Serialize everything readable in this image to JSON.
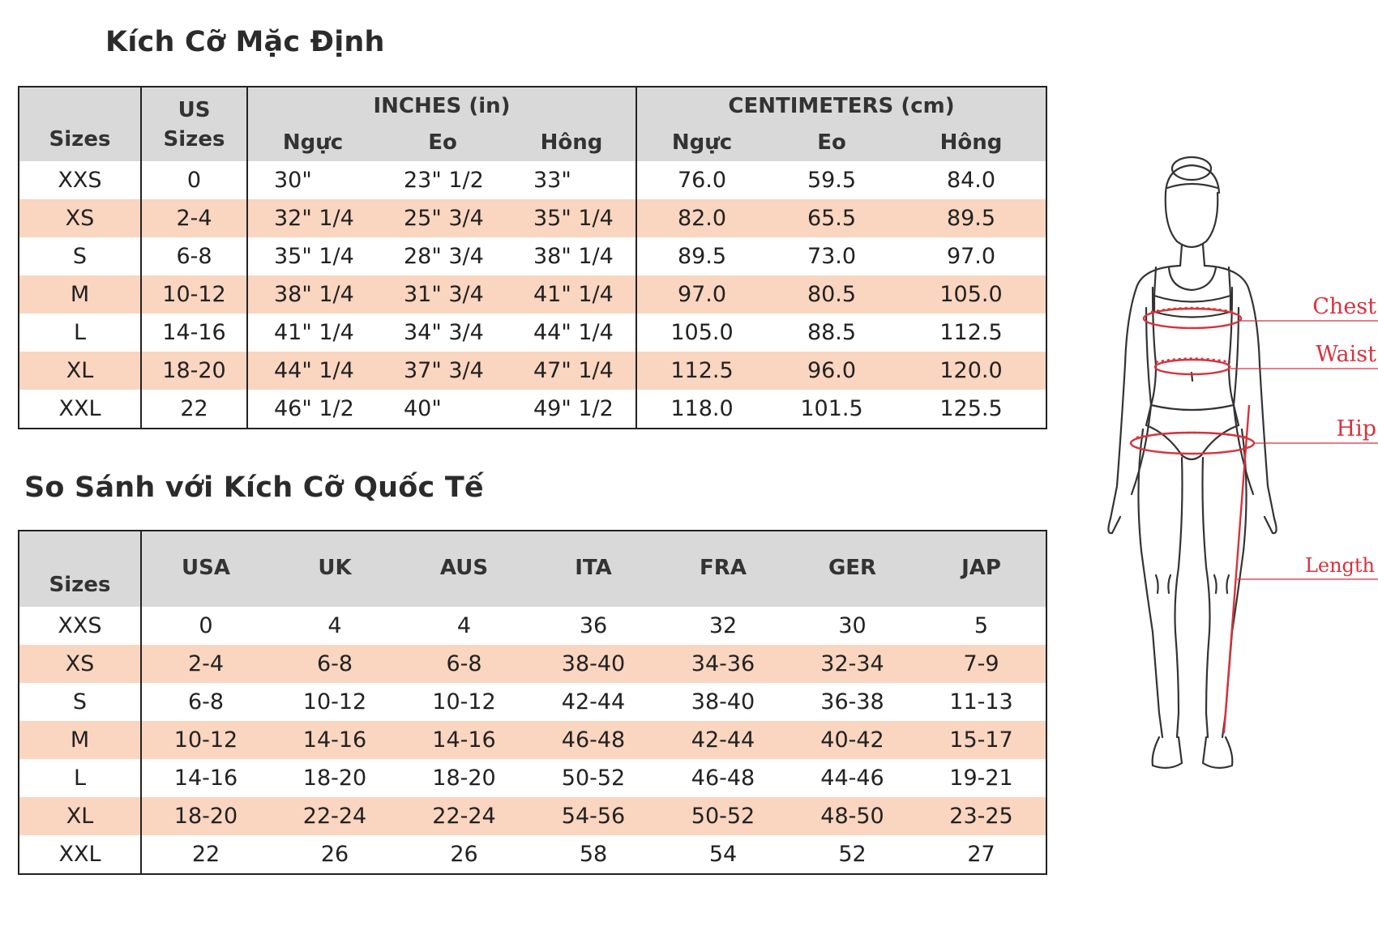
{
  "default_sizes": {
    "title": "Kích Cỡ Mặc Định",
    "headers": {
      "sizes": "Sizes",
      "us_top": "US",
      "us_bottom": "Sizes",
      "inches": "INCHES (in)",
      "centimeters": "CENTIMETERS (cm)",
      "chest": "Ngực",
      "waist": "Eo",
      "hip": "Hông"
    },
    "rows": [
      {
        "size": "XXS",
        "us": "0",
        "in_chest": "30\"",
        "in_waist": "23\" 1/2",
        "in_hip": "33\"",
        "cm_chest": "76.0",
        "cm_waist": "59.5",
        "cm_hip": "84.0"
      },
      {
        "size": "XS",
        "us": "2-4",
        "in_chest": "32\" 1/4",
        "in_waist": "25\" 3/4",
        "in_hip": "35\" 1/4",
        "cm_chest": "82.0",
        "cm_waist": "65.5",
        "cm_hip": "89.5"
      },
      {
        "size": "S",
        "us": "6-8",
        "in_chest": "35\" 1/4",
        "in_waist": "28\" 3/4",
        "in_hip": "38\" 1/4",
        "cm_chest": "89.5",
        "cm_waist": "73.0",
        "cm_hip": "97.0"
      },
      {
        "size": "M",
        "us": "10-12",
        "in_chest": "38\" 1/4",
        "in_waist": "31\" 3/4",
        "in_hip": "41\" 1/4",
        "cm_chest": "97.0",
        "cm_waist": "80.5",
        "cm_hip": "105.0"
      },
      {
        "size": "L",
        "us": "14-16",
        "in_chest": "41\" 1/4",
        "in_waist": "34\" 3/4",
        "in_hip": "44\" 1/4",
        "cm_chest": "105.0",
        "cm_waist": "88.5",
        "cm_hip": "112.5"
      },
      {
        "size": "XL",
        "us": "18-20",
        "in_chest": "44\" 1/4",
        "in_waist": "37\" 3/4",
        "in_hip": "47\" 1/4",
        "cm_chest": "112.5",
        "cm_waist": "96.0",
        "cm_hip": "120.0"
      },
      {
        "size": "XXL",
        "us": "22",
        "in_chest": "46\" 1/2",
        "in_waist": "40\"",
        "in_hip": "49\" 1/2",
        "cm_chest": "118.0",
        "cm_waist": "101.5",
        "cm_hip": "125.5"
      }
    ]
  },
  "international": {
    "title": "So Sánh với Kích Cỡ Quốc Tế",
    "headers": {
      "sizes": "Sizes",
      "usa": "USA",
      "uk": "UK",
      "aus": "AUS",
      "ita": "ITA",
      "fra": "FRA",
      "ger": "GER",
      "jap": "JAP"
    },
    "rows": [
      {
        "size": "XXS",
        "usa": "0",
        "uk": "4",
        "aus": "4",
        "ita": "36",
        "fra": "32",
        "ger": "30",
        "jap": "5"
      },
      {
        "size": "XS",
        "usa": "2-4",
        "uk": "6-8",
        "aus": "6-8",
        "ita": "38-40",
        "fra": "34-36",
        "ger": "32-34",
        "jap": "7-9"
      },
      {
        "size": "S",
        "usa": "6-8",
        "uk": "10-12",
        "aus": "10-12",
        "ita": "42-44",
        "fra": "38-40",
        "ger": "36-38",
        "jap": "11-13"
      },
      {
        "size": "M",
        "usa": "10-12",
        "uk": "14-16",
        "aus": "14-16",
        "ita": "46-48",
        "fra": "42-44",
        "ger": "40-42",
        "jap": "15-17"
      },
      {
        "size": "L",
        "usa": "14-16",
        "uk": "18-20",
        "aus": "18-20",
        "ita": "50-52",
        "fra": "46-48",
        "ger": "44-46",
        "jap": "19-21"
      },
      {
        "size": "XL",
        "usa": "18-20",
        "uk": "22-24",
        "aus": "22-24",
        "ita": "54-56",
        "fra": "50-52",
        "ger": "48-50",
        "jap": "23-25"
      },
      {
        "size": "XXL",
        "usa": "22",
        "uk": "26",
        "aus": "26",
        "ita": "58",
        "fra": "54",
        "ger": "52",
        "jap": "27"
      }
    ]
  },
  "figure": {
    "labels": {
      "chest": "Chest",
      "waist": "Waist",
      "hip": "Hip",
      "length": "Length"
    },
    "accent_color": "#d8323c",
    "icon": "body-measurement-illustration"
  }
}
